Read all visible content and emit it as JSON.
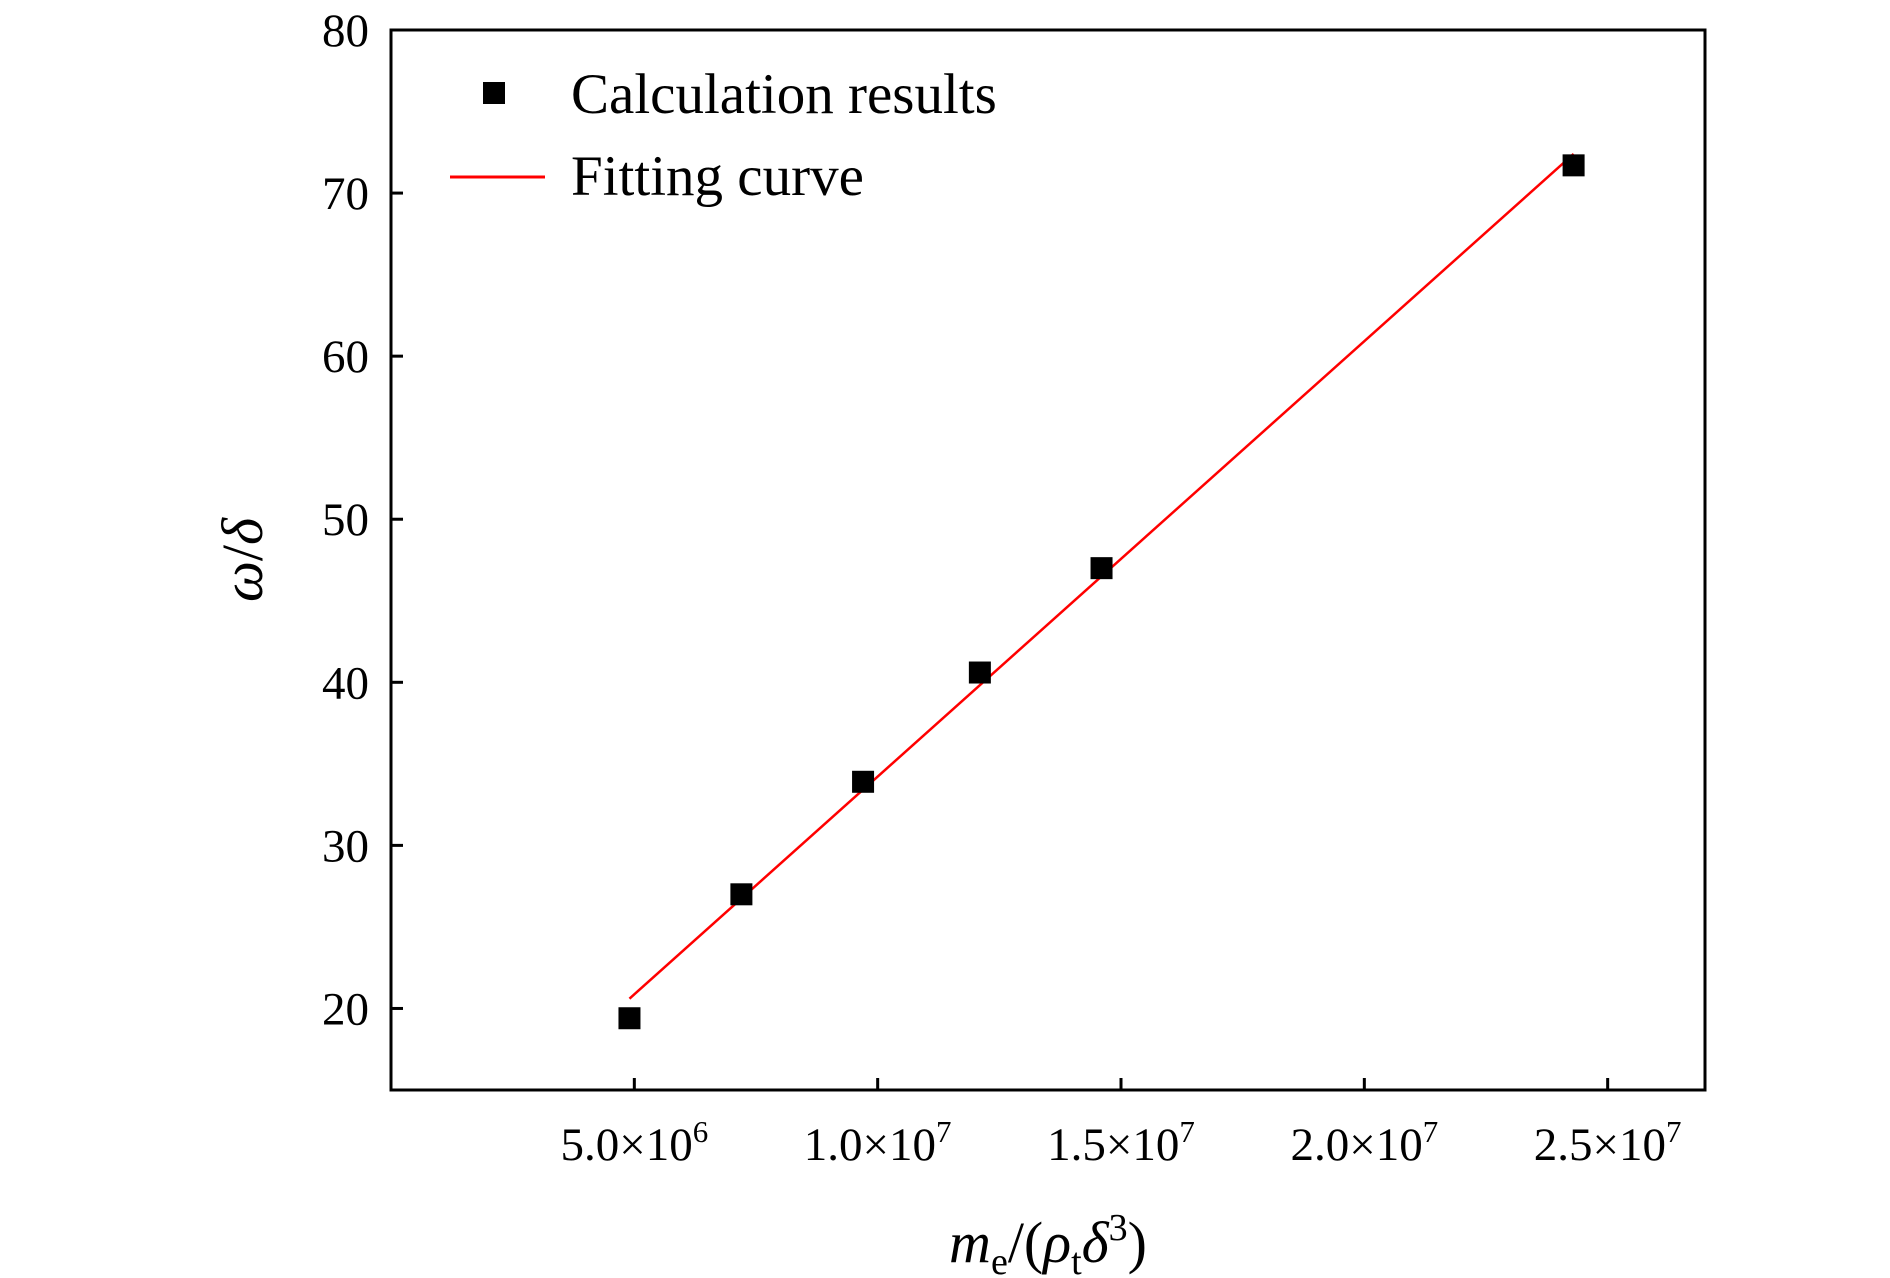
{
  "chart_data": {
    "type": "scatter",
    "xlabel": {
      "m": "m",
      "e": "e",
      "open": "/(",
      "rho": "ρ",
      "t": "t",
      "delta": "δ",
      "cube": "3",
      "close": ")"
    },
    "ylabel": {
      "omega": "ω",
      "slash": "/",
      "delta": "δ"
    },
    "xlim": [
      0,
      27000000
    ],
    "ylim": [
      15,
      80
    ],
    "x_ticks": [
      {
        "value": 5000000,
        "mantissa": "5.0×10",
        "exp": "6"
      },
      {
        "value": 10000000,
        "mantissa": "1.0×10",
        "exp": "7"
      },
      {
        "value": 15000000,
        "mantissa": "1.5×10",
        "exp": "7"
      },
      {
        "value": 20000000,
        "mantissa": "2.0×10",
        "exp": "7"
      },
      {
        "value": 25000000,
        "mantissa": "2.5×10",
        "exp": "7"
      }
    ],
    "y_ticks": [
      {
        "value": 20,
        "label": "20"
      },
      {
        "value": 30,
        "label": "30"
      },
      {
        "value": 40,
        "label": "40"
      },
      {
        "value": 50,
        "label": "50"
      },
      {
        "value": 60,
        "label": "60"
      },
      {
        "value": 70,
        "label": "70"
      },
      {
        "value": 80,
        "label": "80"
      }
    ],
    "legend_position": "top-left",
    "grid": false,
    "series": [
      {
        "name": "Calculation results",
        "type": "scatter",
        "marker": "square",
        "color": "#000000",
        "x": [
          4900000,
          7200000,
          9700000,
          12100000,
          14600000,
          24300000
        ],
        "y": [
          19.4,
          27.0,
          33.9,
          40.6,
          47.0,
          71.7
        ]
      },
      {
        "name": "Fitting curve",
        "type": "line",
        "color": "#ff0000",
        "x": [
          4900000,
          24300000
        ],
        "y": [
          20.6,
          72.4
        ]
      }
    ]
  }
}
